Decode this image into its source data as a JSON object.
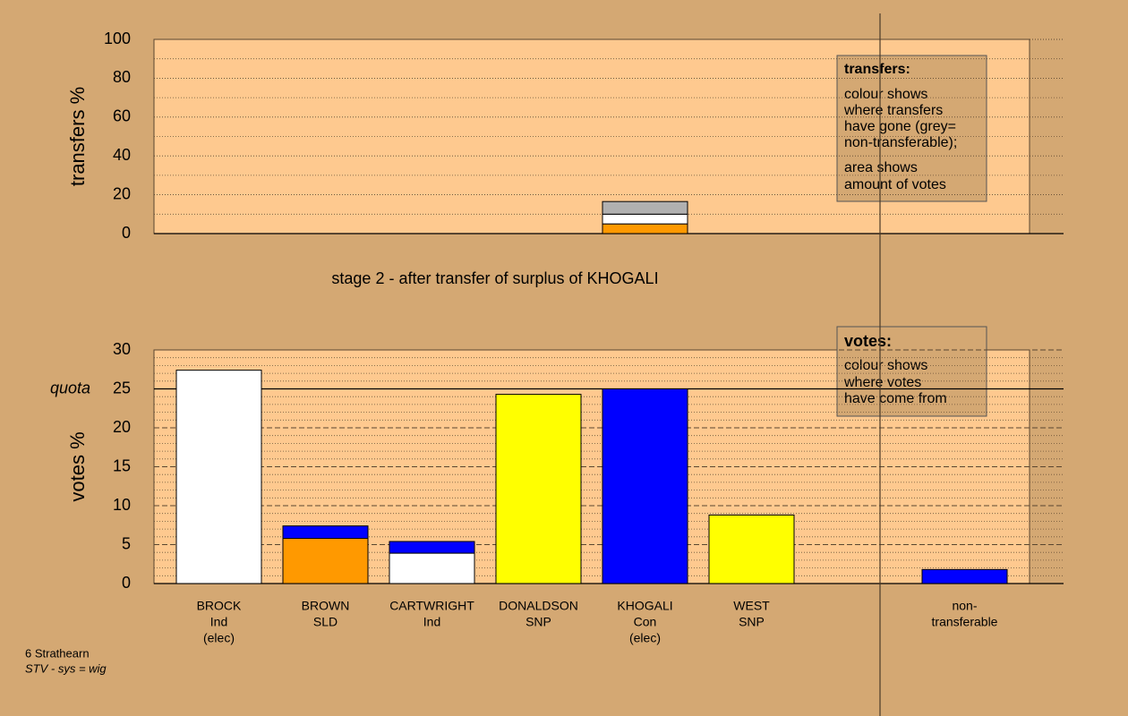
{
  "chart_data": [
    {
      "type": "stacked-bar",
      "y_label": "transfers %",
      "ylim": [
        0,
        100
      ],
      "yticks": [
        0,
        20,
        40,
        60,
        80,
        100
      ],
      "grid": "dotted",
      "minor_grid_divisions": 2,
      "series": [
        {
          "color": "#ff9900",
          "values": [
            null,
            null,
            null,
            null,
            5,
            null,
            null,
            null
          ]
        },
        {
          "color": "#ffffff",
          "values": [
            null,
            null,
            null,
            null,
            5,
            null,
            null,
            null
          ]
        },
        {
          "color": "#b0b0b0",
          "values": [
            null,
            null,
            null,
            null,
            6.5,
            null,
            null,
            null
          ]
        }
      ]
    },
    {
      "type": "stacked-bar",
      "y_label": "votes %",
      "ylim": [
        0,
        30
      ],
      "yticks": [
        0,
        5,
        10,
        15,
        20,
        25,
        30
      ],
      "grid": "dashed",
      "minor_grid_divisions": 5,
      "quota": {
        "value": 25,
        "label": "quota"
      },
      "categories": [
        [
          "BROCK",
          "Ind",
          "(elec)"
        ],
        [
          "BROWN",
          "SLD"
        ],
        [
          "CARTWRIGHT",
          "Ind"
        ],
        [
          "DONALDSON",
          "SNP"
        ],
        [
          "KHOGALI",
          "Con",
          "(elec)"
        ],
        [
          "WEST",
          "SNP"
        ],
        null,
        [
          "non-",
          "transferable"
        ]
      ],
      "series": [
        {
          "color": "#ffffff",
          "values": [
            27.4,
            null,
            3.9,
            null,
            null,
            null,
            null,
            null
          ]
        },
        {
          "color": "#ff9900",
          "values": [
            null,
            5.8,
            null,
            null,
            null,
            null,
            null,
            null
          ]
        },
        {
          "color": "#ffff00",
          "values": [
            null,
            null,
            null,
            24.3,
            null,
            8.8,
            null,
            null
          ]
        },
        {
          "color": "#0000ff",
          "values": [
            null,
            1.6,
            1.5,
            null,
            25,
            null,
            null,
            1.8
          ]
        }
      ]
    }
  ],
  "stage_title": "stage 2 - after transfer of surplus of KHOGALI",
  "notes": {
    "transfers": {
      "heading": "transfers:",
      "paragraphs": [
        [
          "colour shows",
          "where transfers",
          "have gone (grey=",
          "non-transferable);"
        ],
        [
          "area shows",
          "amount of votes"
        ]
      ]
    },
    "votes": {
      "heading": "votes:",
      "paragraphs": [
        [
          "colour shows",
          "where votes",
          "have come from"
        ]
      ]
    }
  },
  "footer": [
    "6 Strathearn",
    "STV - sys = wig"
  ]
}
